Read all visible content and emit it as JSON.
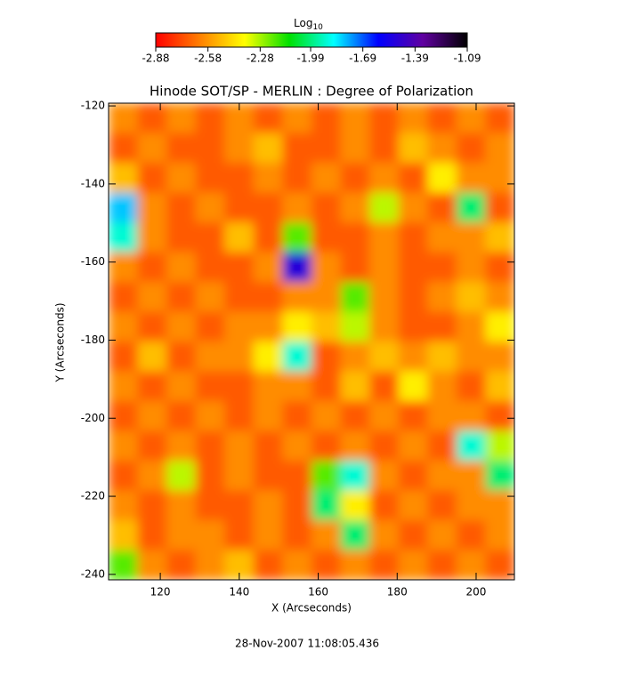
{
  "chart_data": {
    "type": "heatmap",
    "title": "Hinode SOT/SP - MERLIN : Degree of Polarization",
    "x_label": "X (Arcseconds)",
    "y_label": "Y (Arcseconds)",
    "footer": "28-Nov-2007 11:08:05.436",
    "colorbar_title": "Log",
    "colorbar_title_sub": "10",
    "zlim": [
      -2.88,
      -1.09
    ],
    "zticks": [
      -2.88,
      -2.58,
      -2.28,
      -1.99,
      -1.69,
      -1.39,
      -1.09
    ],
    "colormap": [
      "#ff0000",
      "#ff8000",
      "#ffff00",
      "#00e000",
      "#00ffff",
      "#0000ff",
      "#6000a0",
      "#000000"
    ],
    "xlim": [
      106.9,
      209.7
    ],
    "ylim": [
      -241.4,
      -119.3
    ],
    "xticks": [
      120,
      140,
      160,
      180,
      200
    ],
    "yticks": [
      -120,
      -140,
      -160,
      -180,
      -200,
      -220,
      -240
    ],
    "z": [
      [
        -2.6,
        -2.7,
        -2.6,
        -2.7,
        -2.6,
        -2.7,
        -2.6,
        -2.7,
        -2.6,
        -2.7,
        -2.6,
        -2.7,
        -2.6,
        -2.7
      ],
      [
        -2.7,
        -2.6,
        -2.7,
        -2.7,
        -2.6,
        -2.5,
        -2.7,
        -2.7,
        -2.6,
        -2.7,
        -2.5,
        -2.6,
        -2.7,
        -2.6
      ],
      [
        -2.5,
        -2.7,
        -2.6,
        -2.7,
        -2.7,
        -2.6,
        -2.7,
        -2.6,
        -2.7,
        -2.6,
        -2.7,
        -2.4,
        -2.6,
        -2.6
      ],
      [
        -1.8,
        -2.6,
        -2.7,
        -2.6,
        -2.7,
        -2.7,
        -2.6,
        -2.7,
        -2.6,
        -2.3,
        -2.6,
        -2.7,
        -2.0,
        -2.7
      ],
      [
        -1.9,
        -2.6,
        -2.7,
        -2.7,
        -2.5,
        -2.7,
        -2.2,
        -2.7,
        -2.7,
        -2.6,
        -2.7,
        -2.6,
        -2.6,
        -2.5
      ],
      [
        -2.6,
        -2.7,
        -2.6,
        -2.7,
        -2.7,
        -2.6,
        -1.5,
        -2.6,
        -2.7,
        -2.6,
        -2.7,
        -2.7,
        -2.6,
        -2.7
      ],
      [
        -2.7,
        -2.6,
        -2.7,
        -2.6,
        -2.7,
        -2.7,
        -2.6,
        -2.6,
        -2.2,
        -2.6,
        -2.7,
        -2.6,
        -2.5,
        -2.6
      ],
      [
        -2.6,
        -2.7,
        -2.6,
        -2.7,
        -2.6,
        -2.6,
        -2.4,
        -2.5,
        -2.3,
        -2.6,
        -2.7,
        -2.7,
        -2.6,
        -2.4
      ],
      [
        -2.7,
        -2.5,
        -2.7,
        -2.6,
        -2.6,
        -2.4,
        -1.9,
        -2.7,
        -2.6,
        -2.5,
        -2.6,
        -2.5,
        -2.6,
        -2.6
      ],
      [
        -2.6,
        -2.7,
        -2.6,
        -2.7,
        -2.7,
        -2.6,
        -2.6,
        -2.7,
        -2.5,
        -2.7,
        -2.4,
        -2.6,
        -2.7,
        -2.5
      ],
      [
        -2.7,
        -2.6,
        -2.7,
        -2.6,
        -2.7,
        -2.6,
        -2.7,
        -2.6,
        -2.7,
        -2.6,
        -2.7,
        -2.6,
        -2.6,
        -2.7
      ],
      [
        -2.6,
        -2.7,
        -2.6,
        -2.7,
        -2.6,
        -2.7,
        -2.6,
        -2.7,
        -2.6,
        -2.7,
        -2.6,
        -2.7,
        -1.9,
        -2.3
      ],
      [
        -2.7,
        -2.6,
        -2.3,
        -2.7,
        -2.6,
        -2.7,
        -2.7,
        -2.2,
        -1.9,
        -2.6,
        -2.7,
        -2.6,
        -2.6,
        -2.0
      ],
      [
        -2.6,
        -2.7,
        -2.6,
        -2.7,
        -2.7,
        -2.6,
        -2.7,
        -2.0,
        -2.4,
        -2.7,
        -2.6,
        -2.7,
        -2.6,
        -2.6
      ],
      [
        -2.5,
        -2.7,
        -2.6,
        -2.6,
        -2.7,
        -2.6,
        -2.7,
        -2.6,
        -2.0,
        -2.6,
        -2.7,
        -2.6,
        -2.7,
        -2.6
      ],
      [
        -2.2,
        -2.6,
        -2.7,
        -2.6,
        -2.5,
        -2.7,
        -2.6,
        -2.7,
        -2.6,
        -2.7,
        -2.6,
        -2.7,
        -2.6,
        -2.7
      ]
    ]
  }
}
